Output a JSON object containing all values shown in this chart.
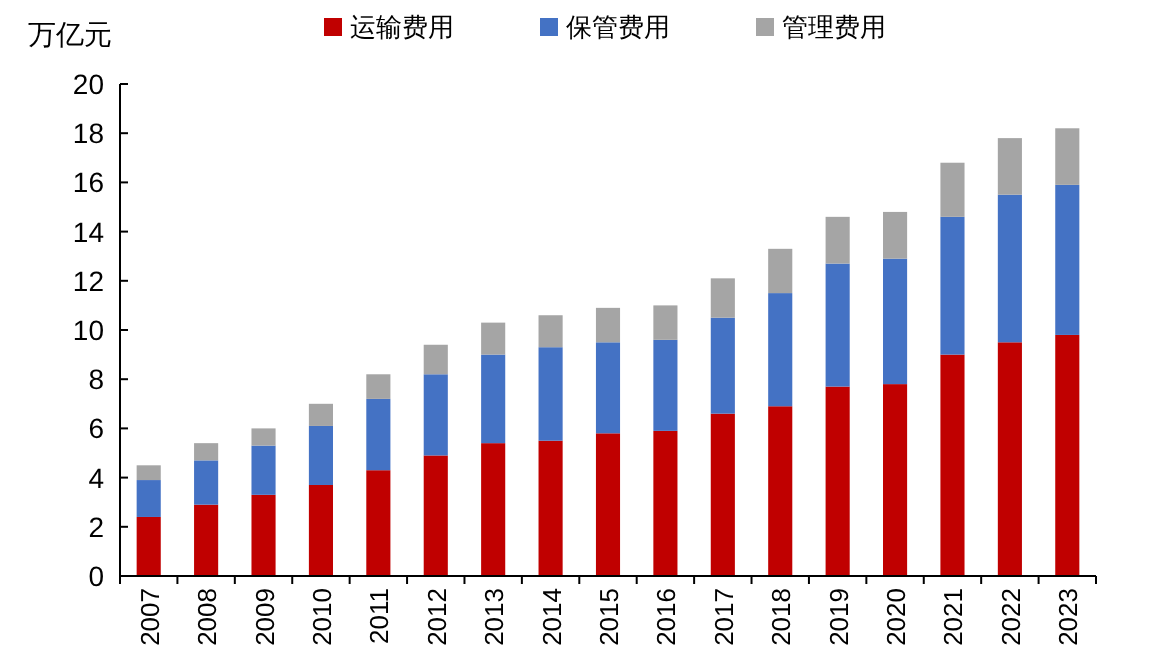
{
  "chart_data": {
    "type": "bar",
    "stacked": true,
    "ylabel": "万亿元",
    "categories": [
      "2007",
      "2008",
      "2009",
      "2010",
      "2011",
      "2012",
      "2013",
      "2014",
      "2015",
      "2016",
      "2017",
      "2018",
      "2019",
      "2020",
      "2021",
      "2022",
      "2023"
    ],
    "series": [
      {
        "name": "运输费用",
        "color": "#c00000",
        "values": [
          2.4,
          2.9,
          3.3,
          3.7,
          4.3,
          4.9,
          5.4,
          5.5,
          5.8,
          5.9,
          6.6,
          6.9,
          7.7,
          7.8,
          9.0,
          9.5,
          9.8
        ]
      },
      {
        "name": "保管费用",
        "color": "#4472c4",
        "values": [
          1.5,
          1.8,
          2.0,
          2.4,
          2.9,
          3.3,
          3.6,
          3.8,
          3.7,
          3.7,
          3.9,
          4.6,
          5.0,
          5.1,
          5.6,
          6.0,
          6.1
        ]
      },
      {
        "name": "管理费用",
        "color": "#a5a5a5",
        "values": [
          0.6,
          0.7,
          0.7,
          0.9,
          1.0,
          1.2,
          1.3,
          1.3,
          1.4,
          1.4,
          1.6,
          1.8,
          1.9,
          1.9,
          2.2,
          2.3,
          2.3
        ]
      }
    ],
    "ylim": [
      0,
      20
    ],
    "yticks": [
      0,
      2,
      4,
      6,
      8,
      10,
      12,
      14,
      16,
      18,
      20
    ],
    "grid": false,
    "legend": "top"
  }
}
